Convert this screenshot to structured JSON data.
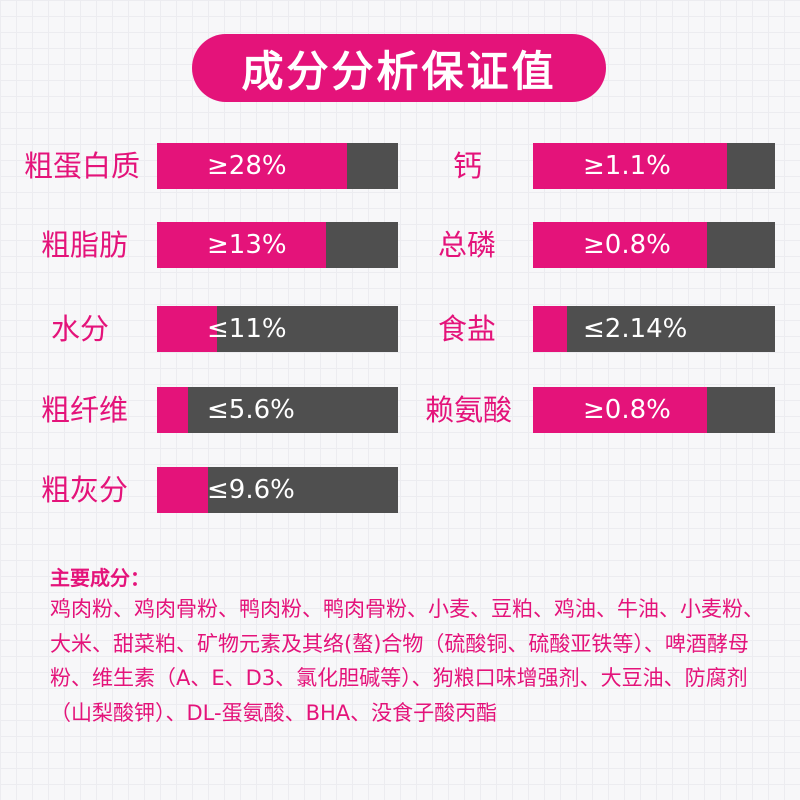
{
  "title": "成分分析保证值",
  "nutrients_left": [
    {
      "label": "粗蛋白质",
      "value": "≥28%",
      "fill": 0.79
    },
    {
      "label": "粗脂肪",
      "value": "≥13%",
      "fill": 0.7
    },
    {
      "label": "水分",
      "value": "≤11%",
      "fill": 0.25
    },
    {
      "label": "粗纤维",
      "value": "≤5.6%",
      "fill": 0.13
    },
    {
      "label": "粗灰分",
      "value": "≤9.6%",
      "fill": 0.21
    }
  ],
  "nutrients_right": [
    {
      "label": "钙",
      "value": "≥1.1%",
      "fill": 0.8
    },
    {
      "label": "总磷",
      "value": "≥0.8%",
      "fill": 0.72
    },
    {
      "label": "食盐",
      "value": "≤2.14%",
      "fill": 0.14
    },
    {
      "label": "赖氨酸",
      "value": "≥0.8%",
      "fill": 0.72
    }
  ],
  "ingredients": {
    "title": "主要成分：",
    "text": "鸡肉粉、鸡肉骨粉、鸭肉粉、鸭肉骨粉、小麦、豆粕、鸡油、牛油、小麦粉、大米、甜菜粕、矿物元素及其络(螯)合物（硫酸铜、硫酸亚铁等）、啤酒酵母粉、维生素（A、E、D3、氯化胆碱等）、狗粮口味增强剂、大豆油、防腐剂（山梨酸钾）、DL-蛋氨酸、BHA、没食子酸丙酯"
  }
}
